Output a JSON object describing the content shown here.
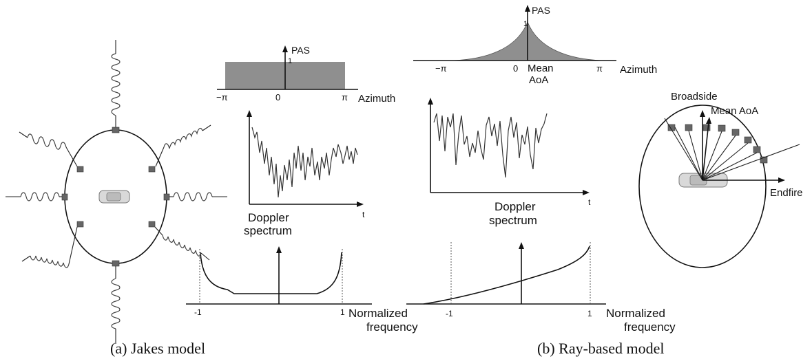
{
  "jakes": {
    "pas_axis_label": "PAS",
    "pas_peak": "1",
    "pas_ticks": [
      "−π",
      "0",
      "π"
    ],
    "azimuth_label": "Azimuth",
    "time_label": "t",
    "doppler_label_line1": "Doppler",
    "doppler_label_line2": "spectrum",
    "freq_ticks": [
      "-1",
      "1"
    ],
    "freq_label_line1": "Normalized",
    "freq_label_line2": "frequency",
    "caption": "(a) Jakes model"
  },
  "ray": {
    "pas_axis_label": "PAS",
    "pas_peak": "1",
    "pas_ticks": [
      "−π",
      "0",
      "π"
    ],
    "mean_aoa_line1": "Mean",
    "mean_aoa_line2": "AoA",
    "azimuth_label": "Azimuth",
    "time_label": "t",
    "doppler_label_line1": "Doppler",
    "doppler_label_line2": "spectrum",
    "freq_ticks": [
      "-1",
      "1"
    ],
    "freq_label_line1": "Normalized",
    "freq_label_line2": "frequency",
    "broadside_label": "Broadside",
    "mean_aoa_label": "Mean AoA",
    "endfire_label": "Endfire",
    "caption": "(b) Ray-based model"
  }
}
